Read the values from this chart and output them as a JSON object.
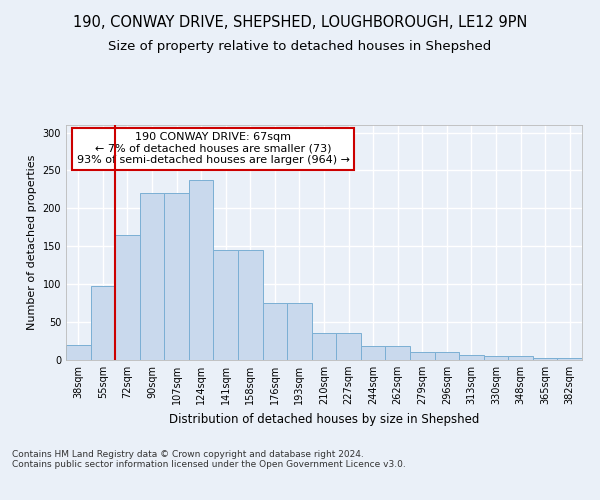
{
  "title1": "190, CONWAY DRIVE, SHEPSHED, LOUGHBOROUGH, LE12 9PN",
  "title2": "Size of property relative to detached houses in Shepshed",
  "xlabel": "Distribution of detached houses by size in Shepshed",
  "ylabel": "Number of detached properties",
  "categories": [
    "38sqm",
    "55sqm",
    "72sqm",
    "90sqm",
    "107sqm",
    "124sqm",
    "141sqm",
    "158sqm",
    "176sqm",
    "193sqm",
    "210sqm",
    "227sqm",
    "244sqm",
    "262sqm",
    "279sqm",
    "296sqm",
    "313sqm",
    "330sqm",
    "348sqm",
    "365sqm",
    "382sqm"
  ],
  "values": [
    20,
    97,
    165,
    220,
    220,
    238,
    145,
    145,
    75,
    75,
    35,
    35,
    18,
    18,
    10,
    10,
    7,
    5,
    5,
    3,
    3
  ],
  "bar_color": "#c9d9ed",
  "bar_edge_color": "#7bafd4",
  "vline_x": 1.5,
  "vline_color": "#cc0000",
  "annotation_text": "190 CONWAY DRIVE: 67sqm\n← 7% of detached houses are smaller (73)\n93% of semi-detached houses are larger (964) →",
  "annotation_box_color": "#ffffff",
  "annotation_box_edge_color": "#cc0000",
  "ylim": [
    0,
    310
  ],
  "yticks": [
    0,
    50,
    100,
    150,
    200,
    250,
    300
  ],
  "footer_text": "Contains HM Land Registry data © Crown copyright and database right 2024.\nContains public sector information licensed under the Open Government Licence v3.0.",
  "bg_color": "#eaf0f8",
  "plot_bg_color": "#eaf0f8",
  "grid_color": "#ffffff",
  "title1_fontsize": 10.5,
  "title2_fontsize": 9.5,
  "xlabel_fontsize": 8.5,
  "ylabel_fontsize": 8,
  "tick_fontsize": 7,
  "annotation_fontsize": 8,
  "footer_fontsize": 6.5
}
